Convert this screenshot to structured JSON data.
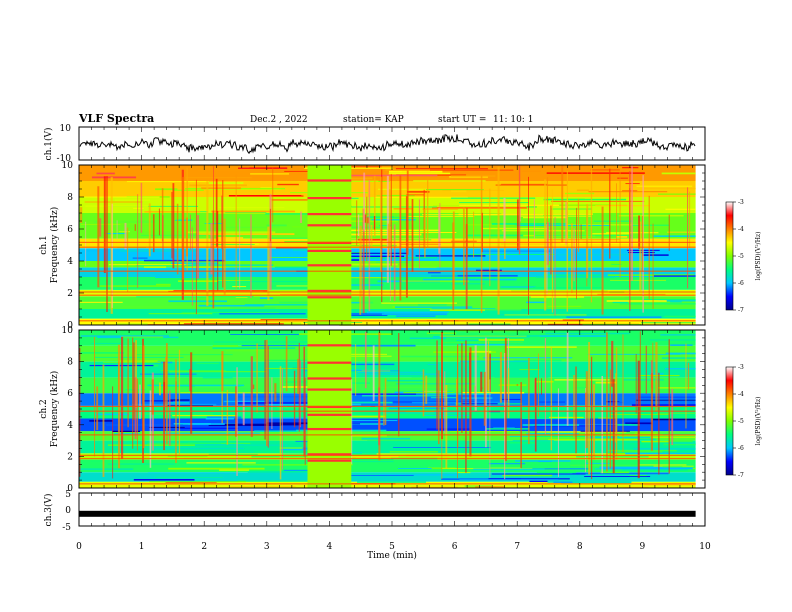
{
  "header": {
    "title": "VLF Spectra",
    "date": "Dec.2 , 2022",
    "station": "station= KAP",
    "start_ut_label": "start UT =",
    "start_ut_value": "11: 10: 1"
  },
  "colorbar": {
    "label": "log(PSD)(V²/Hz)",
    "ticks": [
      "-3",
      "-4",
      "-5",
      "-6",
      "-7"
    ],
    "range": [
      -7,
      -3
    ],
    "colors": [
      "#00008a",
      "#0000ff",
      "#00c8ff",
      "#00ff80",
      "#80ff00",
      "#ffff00",
      "#ff8000",
      "#ff0000",
      "#ffffff"
    ]
  },
  "chart_data": [
    {
      "type": "line",
      "name": "ch1-waveform",
      "ylabel": "ch.1(V)",
      "ylim": [
        -10,
        10
      ],
      "ytick_labels": [
        "10",
        "-10"
      ],
      "xlim": [
        0,
        10
      ],
      "x_end": 9.85,
      "description_values": {
        "baseline": 0,
        "amplitude_approx": 4
      }
    },
    {
      "type": "heatmap",
      "name": "ch1-spectrogram",
      "ylabel": "ch.1",
      "ylabel2": "Frequency (kHz)",
      "ylim": [
        0,
        10
      ],
      "ytick_labels": [
        "0",
        "2",
        "4",
        "6",
        "8",
        "10"
      ],
      "xlim": [
        0,
        10
      ],
      "x_end": 9.85,
      "burst_interval_min": [
        3.65,
        4.35
      ],
      "bands_khz": [
        {
          "f0": 0,
          "f1": 0.4,
          "level": -4.5
        },
        {
          "f0": 0.4,
          "f1": 1.0,
          "level": -5.6
        },
        {
          "f0": 1.0,
          "f1": 1.8,
          "level": -5.2
        },
        {
          "f0": 1.8,
          "f1": 2.2,
          "level": -4.6
        },
        {
          "f0": 2.2,
          "f1": 3.0,
          "level": -5.4
        },
        {
          "f0": 3.0,
          "f1": 3.6,
          "level": -5.9
        },
        {
          "f0": 3.6,
          "f1": 4.0,
          "level": -5.1
        },
        {
          "f0": 4.0,
          "f1": 4.8,
          "level": -6.0
        },
        {
          "f0": 4.8,
          "f1": 5.4,
          "level": -4.4
        },
        {
          "f0": 5.4,
          "f1": 7.0,
          "level": -5.1
        },
        {
          "f0": 7.0,
          "f1": 8.0,
          "level": -4.7
        },
        {
          "f0": 8.0,
          "f1": 9.0,
          "level": -4.3
        },
        {
          "f0": 9.0,
          "f1": 10.0,
          "level": -4.1
        }
      ]
    },
    {
      "type": "heatmap",
      "name": "ch2-spectrogram",
      "ylabel": "ch.2",
      "ylabel2": "Frequency (kHz)",
      "ylim": [
        0,
        10
      ],
      "ytick_labels": [
        "0",
        "2",
        "4",
        "6",
        "8",
        "10"
      ],
      "xlim": [
        0,
        10
      ],
      "x_end": 9.85,
      "burst_interval_min": [
        3.65,
        4.35
      ],
      "bands_khz": [
        {
          "f0": 0,
          "f1": 0.4,
          "level": -4.6
        },
        {
          "f0": 0.4,
          "f1": 1.0,
          "level": -5.8
        },
        {
          "f0": 1.0,
          "f1": 1.8,
          "level": -5.4
        },
        {
          "f0": 1.8,
          "f1": 2.2,
          "level": -4.8
        },
        {
          "f0": 2.2,
          "f1": 3.0,
          "level": -5.6
        },
        {
          "f0": 3.0,
          "f1": 3.6,
          "level": -5.2
        },
        {
          "f0": 3.6,
          "f1": 4.4,
          "level": -6.3
        },
        {
          "f0": 4.4,
          "f1": 5.2,
          "level": -5.5
        },
        {
          "f0": 5.2,
          "f1": 6.0,
          "level": -6.2
        },
        {
          "f0": 6.0,
          "f1": 7.0,
          "level": -5.3
        },
        {
          "f0": 7.0,
          "f1": 8.0,
          "level": -5.6
        },
        {
          "f0": 8.0,
          "f1": 9.0,
          "level": -5.2
        },
        {
          "f0": 9.0,
          "f1": 10.0,
          "level": -5.4
        }
      ]
    },
    {
      "type": "line",
      "name": "ch3-signal",
      "ylabel": "ch.3(V)",
      "ylim": [
        -5,
        5
      ],
      "ytick_labels": [
        "5",
        "0",
        "-5"
      ],
      "xlim": [
        0,
        10
      ],
      "x_end": 9.85,
      "constant_value": -1.3
    }
  ],
  "xaxis": {
    "label": "Time (min)",
    "ticks": [
      "0",
      "1",
      "2",
      "3",
      "4",
      "5",
      "6",
      "7",
      "8",
      "9",
      "10"
    ]
  }
}
